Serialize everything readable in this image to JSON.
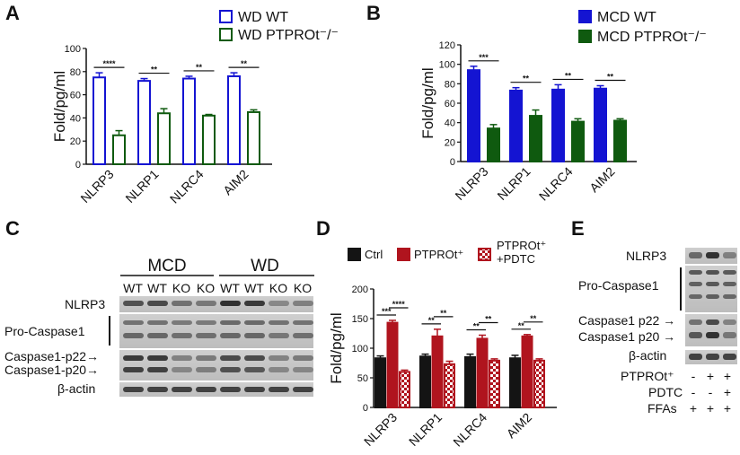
{
  "panels": {
    "A": {
      "letter": "A"
    },
    "B": {
      "letter": "B"
    },
    "C": {
      "letter": "C",
      "group_labels": [
        "MCD",
        "WD"
      ],
      "lane_labels": [
        "WT",
        "WT",
        "KO",
        "KO",
        "WT",
        "WT",
        "KO",
        "KO"
      ],
      "row_labels": [
        "NLRP3",
        "Pro-Caspase1",
        "Caspase1-p22→",
        "Caspase1-p20→",
        "β-actin"
      ]
    },
    "D": {
      "letter": "D"
    },
    "E": {
      "letter": "E",
      "row_labels": [
        "NLRP3",
        "Pro-Caspase1",
        "Caspase1 p22 →",
        "Caspase1 p20 →",
        "β-actin"
      ],
      "conditions": [
        {
          "label": "PTPROt⁺",
          "values": [
            "-",
            "+",
            "+"
          ]
        },
        {
          "label": "PDTC",
          "values": [
            "-",
            "-",
            "+"
          ]
        },
        {
          "label": "FFAs",
          "values": [
            "+",
            "+",
            "+"
          ]
        }
      ]
    }
  },
  "colors": {
    "blue": "#1414d2",
    "green": "#0f5a0f",
    "dark": "#111111",
    "red": "#b0141e"
  },
  "chart_data": [
    {
      "id": "A",
      "type": "bar",
      "title": "",
      "xlabel": "",
      "ylabel": "Fold/pg/ml",
      "ylim": [
        0,
        100
      ],
      "yticks": [
        "0",
        "20",
        "40",
        "60",
        "80",
        "100"
      ],
      "categories": [
        "NLRP3",
        "NLRP1",
        "NLRC4",
        "AIM2"
      ],
      "series": [
        {
          "name": "WD WT",
          "values": [
            75,
            72,
            74,
            76
          ],
          "errors": [
            4,
            2,
            2,
            3
          ]
        },
        {
          "name": "WD PTPROt⁻/⁻",
          "values": [
            25,
            44,
            42,
            45
          ],
          "errors": [
            4,
            4,
            1,
            2
          ]
        }
      ],
      "significance": [
        "****",
        "**",
        "**",
        "**"
      ],
      "legend": "top-right"
    },
    {
      "id": "B",
      "type": "bar",
      "title": "",
      "xlabel": "",
      "ylabel": "Fold/pg/ml",
      "ylim": [
        0,
        120
      ],
      "yticks": [
        "0",
        "20",
        "40",
        "60",
        "80",
        "100",
        "120"
      ],
      "categories": [
        "NLRP3",
        "NLRP1",
        "NLRC4",
        "AIM2"
      ],
      "series": [
        {
          "name": "MCD WT",
          "values": [
            94,
            73,
            74,
            75
          ],
          "errors": [
            4,
            3,
            5,
            3
          ]
        },
        {
          "name": "MCD PTPROt⁻/⁻",
          "values": [
            34,
            47,
            41,
            42
          ],
          "errors": [
            4,
            6,
            3,
            2
          ]
        }
      ],
      "significance": [
        "***",
        "**",
        "**",
        "**"
      ],
      "legend": "top-right"
    },
    {
      "id": "D",
      "type": "bar",
      "title": "",
      "xlabel": "",
      "ylabel": "Fold/pg/ml",
      "ylim": [
        0,
        200
      ],
      "yticks": [
        "0",
        "50",
        "100",
        "150",
        "200"
      ],
      "categories": [
        "NLRP3",
        "NLRP1",
        "NLRC4",
        "AIM2"
      ],
      "series": [
        {
          "name": "Ctrl",
          "values": [
            83,
            86,
            85,
            83
          ],
          "errors": [
            4,
            4,
            5,
            5
          ]
        },
        {
          "name": "PTPROt⁺",
          "values": [
            143,
            120,
            116,
            120
          ],
          "errors": [
            4,
            12,
            6,
            3
          ]
        },
        {
          "name": "PTPROt⁺ +PDTC",
          "values": [
            60,
            73,
            79,
            79
          ],
          "errors": [
            3,
            5,
            3,
            3
          ]
        }
      ],
      "significance": [
        [
          "***",
          "****"
        ],
        [
          "**",
          "**"
        ],
        [
          "**",
          "**"
        ],
        [
          "**",
          "**"
        ]
      ],
      "legend": "top"
    }
  ]
}
